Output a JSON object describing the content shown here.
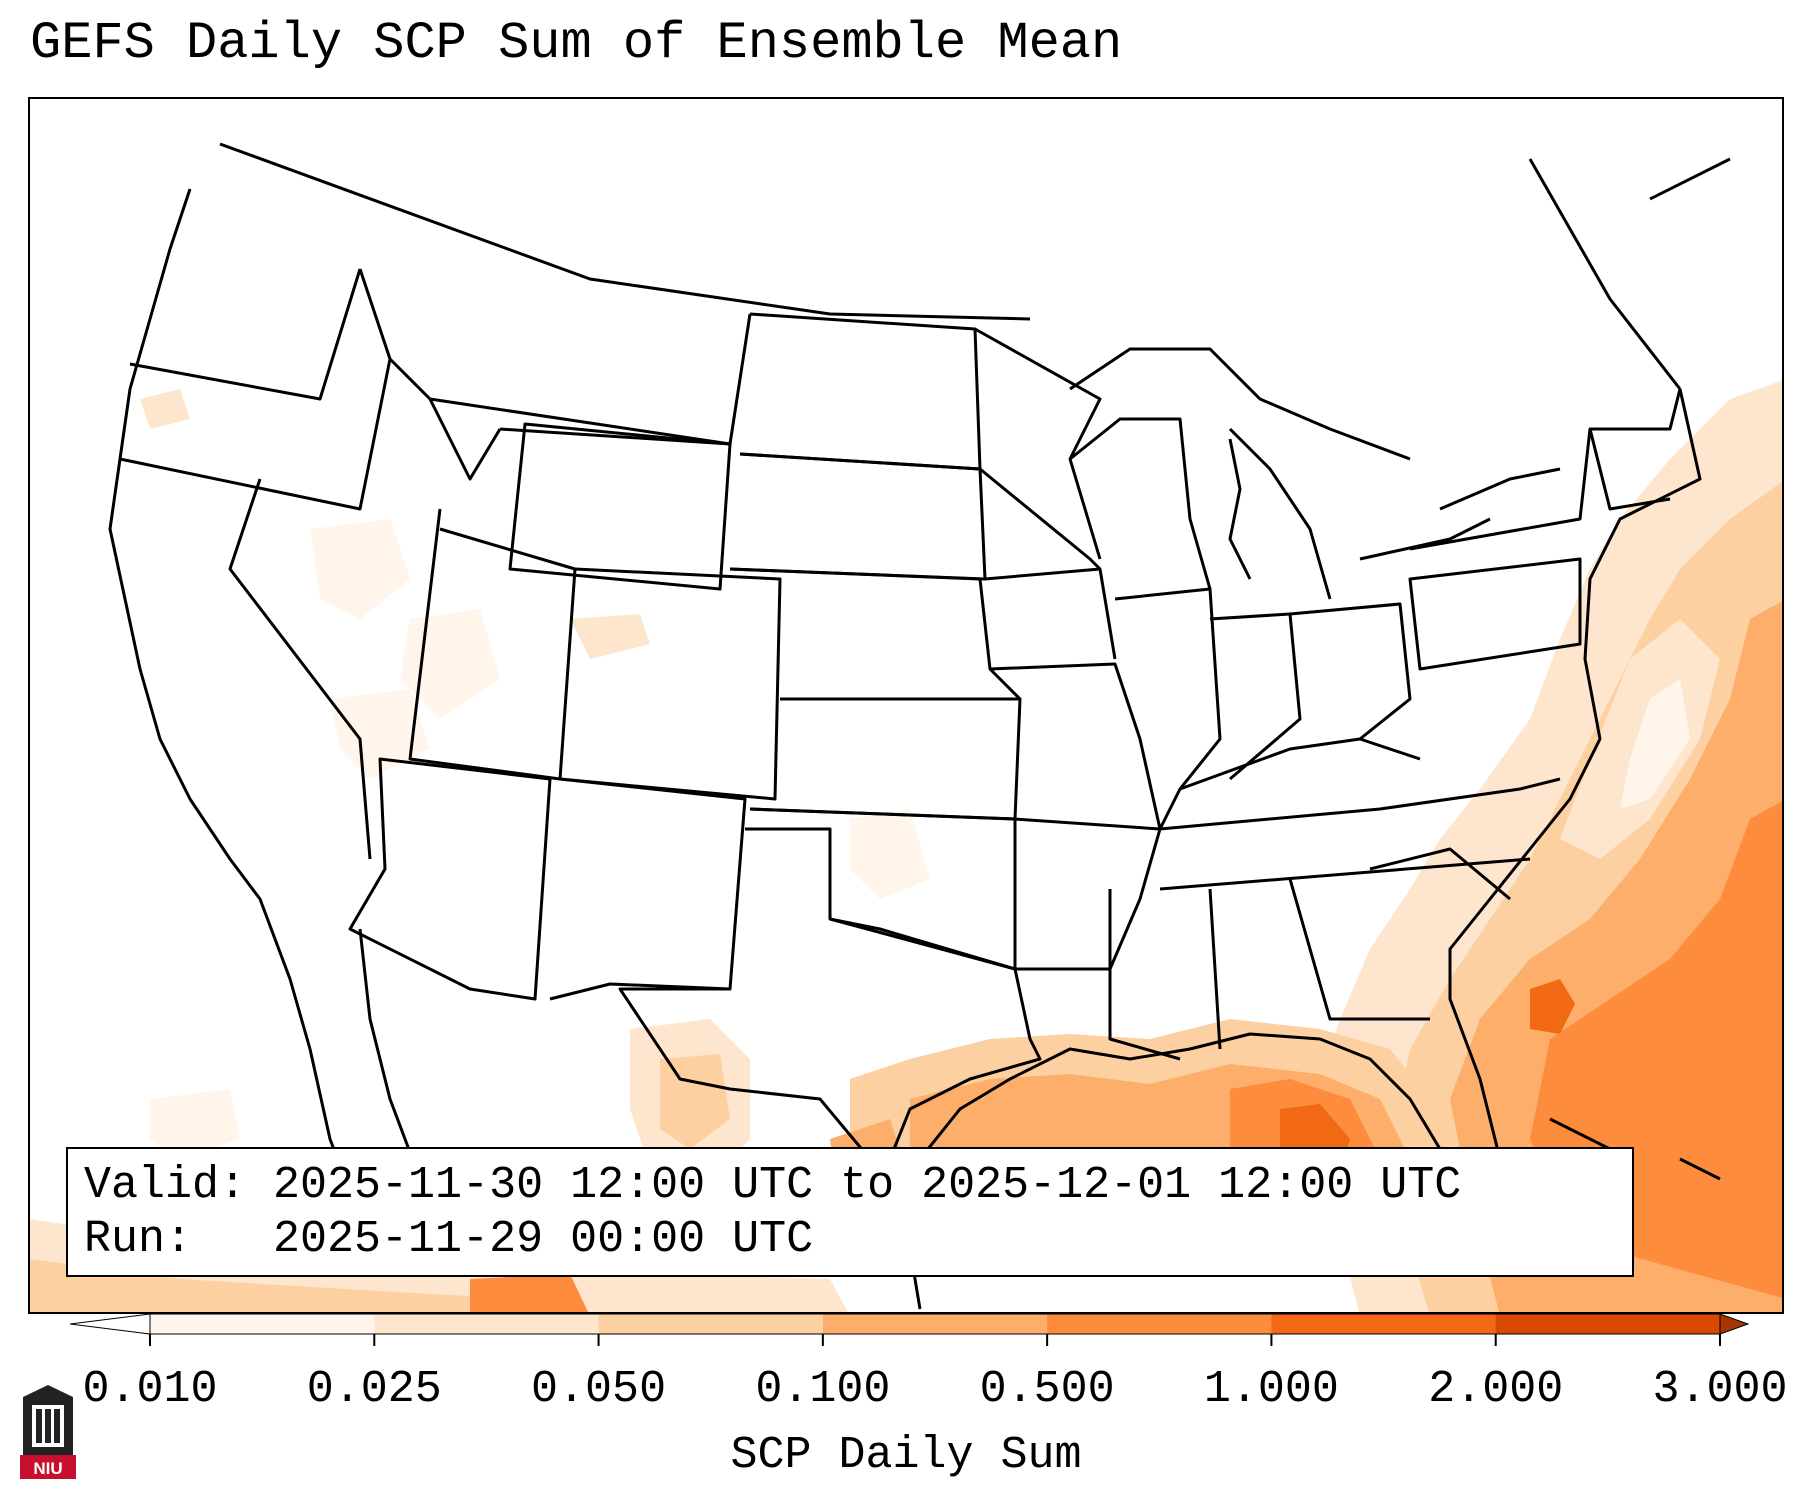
{
  "title": "GEFS Daily SCP Sum of Ensemble Mean",
  "info": {
    "valid_line": "Valid: 2025-11-30 12:00 UTC to 2025-12-01 12:00 UTC",
    "run_line": "Run:   2025-11-29 00:00 UTC"
  },
  "colorbar": {
    "label": "SCP Daily Sum",
    "ticks": [
      "0.010",
      "0.025",
      "0.050",
      "0.100",
      "0.500",
      "1.000",
      "2.000",
      "3.000"
    ],
    "colors": [
      "#fff5eb",
      "#fee6ce",
      "#fdd0a2",
      "#fdae6b",
      "#fd8d3c",
      "#f16913",
      "#d94801",
      "#a63603"
    ]
  },
  "logo": {
    "text": "NIU",
    "color": "#c8102e"
  }
}
